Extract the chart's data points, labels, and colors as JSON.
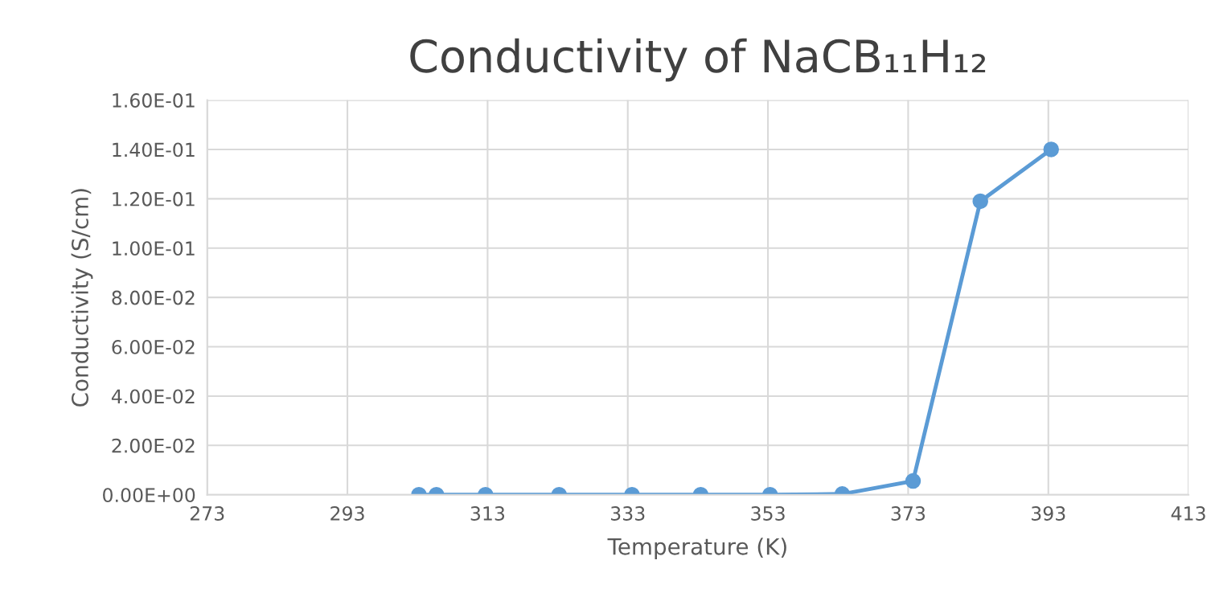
{
  "chart_data": {
    "type": "line",
    "title": "Conductivity of NaCB₁₁H₁₂",
    "xlabel": "Temperature (K)",
    "ylabel": "Conductivity (S/cm)",
    "x": [
      303.2,
      305.7,
      312.7,
      323.2,
      333.6,
      343.4,
      353.3,
      363.6,
      373.7,
      383.3,
      393.4
    ],
    "series": [
      {
        "color": "#5b9bd5",
        "values": [
          0,
          0,
          0,
          0,
          0,
          0,
          0,
          0.0003,
          0.0056,
          0.119,
          0.14
        ]
      }
    ],
    "xlim": [
      273,
      413
    ],
    "xticks": [
      273,
      293,
      313,
      333,
      353,
      373,
      393,
      413
    ],
    "ylim": [
      0,
      0.16
    ],
    "yticks": [
      {
        "value": 0,
        "label": "0.00E+00"
      },
      {
        "value": 0.02,
        "label": "2.00E-02"
      },
      {
        "value": 0.04,
        "label": "4.00E-02"
      },
      {
        "value": 0.06,
        "label": "6.00E-02"
      },
      {
        "value": 0.08,
        "label": "8.00E-02"
      },
      {
        "value": 0.1,
        "label": "1.00E-01"
      },
      {
        "value": 0.12,
        "label": "1.20E-01"
      },
      {
        "value": 0.14,
        "label": "1.40E-01"
      },
      {
        "value": 0.16,
        "label": "1.60E-01"
      }
    ],
    "grid": true,
    "marker": "circle",
    "line_style": "solid"
  }
}
